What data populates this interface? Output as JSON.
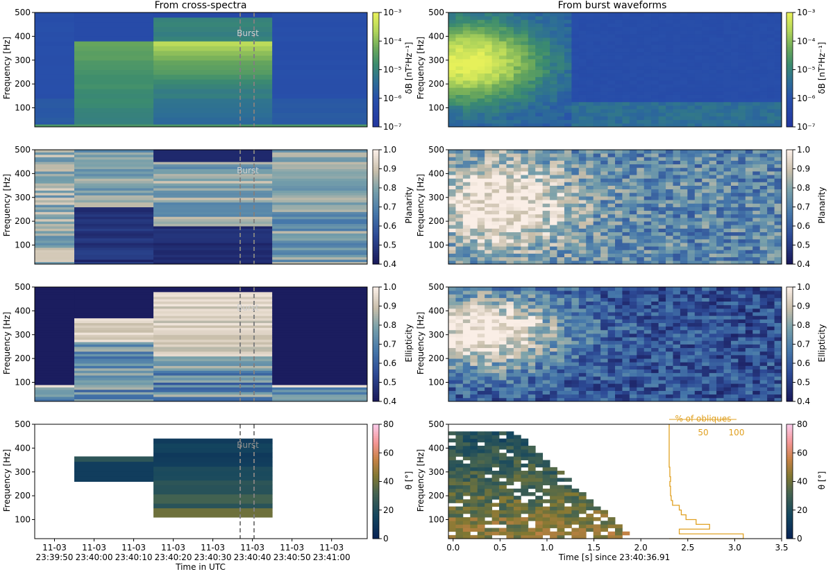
{
  "titles": {
    "left": "From cross-spectra",
    "right": "From burst waveforms"
  },
  "ylabel": "Frequency [Hz]",
  "burst_label": "Burst",
  "xlabel_left": "Time in UTC",
  "xlabel_right": "Time [s] since 23:40:36.91",
  "yticks": [
    "100",
    "200",
    "300",
    "400",
    "500"
  ],
  "xticks_left_line1": [
    "11-03",
    "11-03",
    "11-03",
    "11-03",
    "11-03",
    "11-03",
    "11-03",
    "11-03"
  ],
  "xticks_left_line2": [
    "23:39:50",
    "23:40:00",
    "23:40:10",
    "23:40:20",
    "23:40:30",
    "23:40:40",
    "23:40:50",
    "23:41:00"
  ],
  "xticks_right": [
    "0.0",
    "0.5",
    "1.0",
    "1.5",
    "2.0",
    "2.5",
    "3.0",
    "3.5"
  ],
  "colorbars": {
    "dB": {
      "label": "δB [nT²Hz⁻¹]",
      "ticks": [
        "10⁻⁷",
        "10⁻⁶",
        "10⁻⁵",
        "10⁻⁴",
        "10⁻³"
      ]
    },
    "planarity": {
      "label": "Planarity",
      "ticks": [
        "0.4",
        "0.5",
        "0.6",
        "0.7",
        "0.8",
        "0.9",
        "1.0"
      ]
    },
    "ellipticity": {
      "label": "Ellipticity",
      "ticks": [
        "0.4",
        "0.5",
        "0.6",
        "0.7",
        "0.8",
        "0.9",
        "1.0"
      ]
    },
    "theta": {
      "label": "θ [°]",
      "ticks": [
        "0",
        "20",
        "40",
        "60",
        "80"
      ]
    }
  },
  "histogram": {
    "title": "% of obliques",
    "ticks": [
      "50",
      "100"
    ],
    "color": "#e0a020"
  },
  "colors": {
    "burst_line": "#808080",
    "axis": "#000000"
  },
  "chart_data": {
    "type": "heatmap",
    "frequency_range_hz": [
      20,
      500
    ],
    "left_time_range": [
      "23:39:45",
      "23:41:09"
    ],
    "burst_window_s_since_2340": [
      36.91,
      40.41
    ],
    "left_time_blocks": [
      {
        "start": "23:39:45",
        "end": "23:39:55"
      },
      {
        "start": "23:39:55",
        "end": "23:40:15"
      },
      {
        "start": "23:40:15",
        "end": "23:40:45"
      },
      {
        "start": "23:40:45",
        "end": "23:41:09"
      }
    ],
    "right_time_range_s": [
      -0.05,
      3.5
    ],
    "power_log10_by_block": [
      -6.5,
      -5.5,
      -4.5,
      -6.3
    ],
    "power_burst_peak_log10": -4.0,
    "planarity_by_block_mean": [
      0.72,
      0.55,
      0.6,
      0.75
    ],
    "ellipticity_by_block_mean": [
      0.4,
      0.8,
      0.85,
      0.4
    ],
    "theta_by_block_deg": [
      null,
      15,
      25,
      null
    ],
    "histogram_percent_obliques": {
      "freq_hz": [
        40,
        60,
        80,
        100,
        120,
        140,
        160,
        180,
        200,
        220,
        240,
        260,
        280,
        300,
        320,
        340,
        360,
        380,
        400,
        420,
        440,
        460,
        480,
        500
      ],
      "percent": [
        110,
        15,
        60,
        40,
        25,
        18,
        15,
        5,
        3,
        2,
        2,
        1,
        2,
        1,
        1,
        0,
        0,
        0,
        0,
        0,
        0,
        0,
        0,
        0
      ]
    }
  }
}
